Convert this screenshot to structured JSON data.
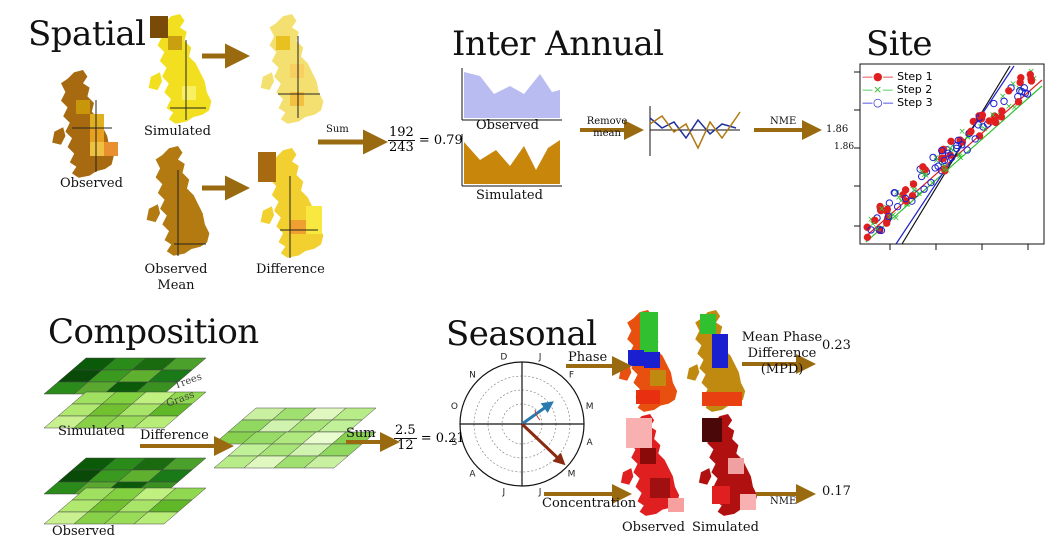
{
  "headings": {
    "spatial": "Spatial",
    "inter_annual": "Inter Annual",
    "site": "Site",
    "composition": "Composition",
    "seasonal": "Seasonal"
  },
  "spatial": {
    "observed": "Observed",
    "simulated": "Simulated",
    "observed_mean_1": "Observed",
    "observed_mean_2": "Mean",
    "difference": "Difference",
    "sum": "Sum",
    "numerator": "192",
    "denominator": "243",
    "result": "= 0.79"
  },
  "inter_annual": {
    "observed": "Observed",
    "simulated": "Simulated",
    "remove_mean_1": "Remove",
    "remove_mean_2": "mean",
    "nme": "NME",
    "result": "1.86"
  },
  "site": {
    "legend": [
      "Step 1",
      "Step 2",
      "Step 3"
    ],
    "colors": [
      "#e02020",
      "#30c030",
      "#2020d0"
    ]
  },
  "composition": {
    "simulated": "Simulated",
    "observed": "Observed",
    "trees": "Trees",
    "grass": "Grass",
    "difference": "Difference",
    "sum": "Sum",
    "numerator": "2.5",
    "denominator": "12",
    "result": "= 0.21"
  },
  "seasonal": {
    "months": [
      "J",
      "F",
      "M",
      "A",
      "M",
      "J",
      "J",
      "A",
      "S",
      "O",
      "N",
      "D"
    ],
    "phase": "Phase",
    "mpd_1": "Mean Phase",
    "mpd_2": "Difference",
    "mpd_3": "(MPD)",
    "mpd_result": "0.23",
    "concentration": "Concentration",
    "observed": "Observed",
    "simulated": "Simulated",
    "nme": "NME",
    "nme_result": "0.17"
  },
  "colors": {
    "arrow": "#9a6a10",
    "observed_area": "#b8bcf0",
    "simulated_area": "#c8860a",
    "map_brown": "#a86a10",
    "map_yellow": "#f2e020"
  }
}
